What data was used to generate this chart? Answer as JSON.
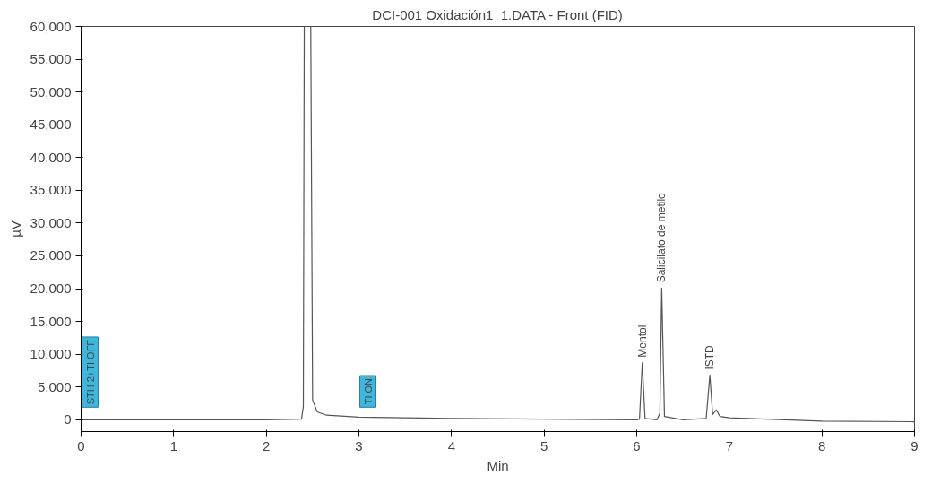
{
  "chart_data": {
    "type": "line",
    "title": "DCI-001 Oxidación1_1.DATA - Front (FID)",
    "xlabel": "Min",
    "ylabel": "µV",
    "x": [
      0,
      1,
      2,
      2.38,
      2.4,
      2.41,
      2.48,
      2.5,
      2.55,
      2.65,
      3,
      4,
      5,
      6,
      6.03,
      6.06,
      6.09,
      6.22,
      6.25,
      6.27,
      6.3,
      6.5,
      6.75,
      6.79,
      6.82,
      6.86,
      6.9,
      7,
      8,
      9
    ],
    "series": [
      {
        "color": "#555555",
        "values": [
          0,
          0,
          0,
          100,
          2000,
          60000,
          60000,
          3000,
          1200,
          700,
          400,
          200,
          100,
          0,
          100,
          8700,
          200,
          0,
          1000,
          20100,
          500,
          0,
          200,
          6800,
          800,
          1500,
          500,
          300,
          -200,
          -300
        ]
      }
    ],
    "xlim": [
      0,
      9
    ],
    "ylim": [
      -1800,
      60000
    ],
    "xticks": [
      0,
      1,
      2,
      3,
      4,
      5,
      6,
      7,
      8,
      9
    ],
    "yticks": [
      0,
      {
        "value": 5000,
        "label": "5,000"
      },
      {
        "value": 10000,
        "label": "10,000"
      },
      {
        "value": 15000,
        "label": "15,000"
      },
      {
        "value": 20000,
        "label": "20,000"
      },
      {
        "value": 25000,
        "label": "25,000"
      },
      {
        "value": 30000,
        "label": "30,000"
      },
      {
        "value": 35000,
        "label": "35,000"
      },
      {
        "value": 40000,
        "label": "40,000"
      },
      {
        "value": 45000,
        "label": "45,000"
      },
      {
        "value": 50000,
        "label": "50,000"
      },
      {
        "value": 55000,
        "label": "55,000"
      },
      {
        "value": 60000,
        "label": "60,000"
      }
    ],
    "annotations": [
      {
        "text": "STH 2+TI OFF",
        "x": 0,
        "y": 0
      },
      {
        "text": "TI ON",
        "x": 3,
        "y": 0
      },
      {
        "text": "Mentol",
        "x": 6.06,
        "y": 8700
      },
      {
        "text": "Salicilato de metilo",
        "x": 6.27,
        "y": 20100
      },
      {
        "text": "ISTD",
        "x": 6.79,
        "y": 6800
      }
    ],
    "grid": false,
    "marker": "none",
    "line_style": "solid"
  }
}
